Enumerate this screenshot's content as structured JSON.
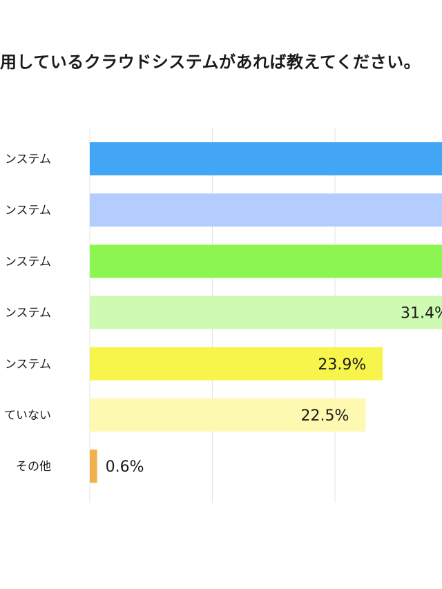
{
  "chart_data": {
    "type": "bar",
    "orientation": "horizontal",
    "title": "用しているクラウドシステムがあれば教えてください。",
    "categories": [
      "ンステム",
      "ンステム",
      "ンステム",
      "ンステム",
      "ンステム",
      "ていない",
      "その他"
    ],
    "values": [
      null,
      null,
      null,
      31.4,
      23.9,
      22.5,
      0.6
    ],
    "value_labels": [
      "",
      "",
      "",
      "31.4%",
      "23.9%",
      "22.5%",
      "0.6%"
    ],
    "colors": [
      "#42a5f5",
      "#b3cdff",
      "#8cf54f",
      "#cffab2",
      "#f7f54b",
      "#fdf9b0",
      "#f3b04e"
    ],
    "xlim": [
      0,
      36
    ],
    "grid": true,
    "legend": "none"
  }
}
